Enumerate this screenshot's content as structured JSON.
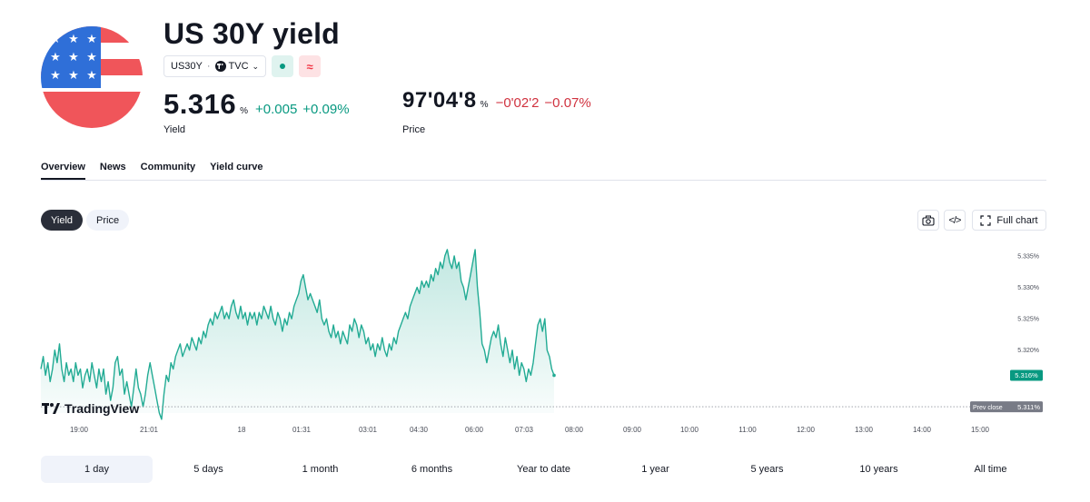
{
  "header": {
    "title": "US 30Y yield",
    "symbol": "US30Y",
    "exchange": "TVC",
    "flag_icon": "us-flag-icon"
  },
  "yield_quote": {
    "value": "5.316",
    "unit": "%",
    "change": "+0.005",
    "change_pct": "+0.09%",
    "label": "Yield"
  },
  "price_quote": {
    "value": "97'04'8",
    "unit": "%",
    "change": "−0'02'2",
    "change_pct": "−0.07%",
    "label": "Price"
  },
  "tabs": [
    {
      "label": "Overview",
      "active": true
    },
    {
      "label": "News",
      "active": false
    },
    {
      "label": "Community",
      "active": false
    },
    {
      "label": "Yield curve",
      "active": false
    }
  ],
  "chart_toggle": {
    "yield": "Yield",
    "price": "Price",
    "selected": "Yield"
  },
  "tools": {
    "full_chart": "Full chart"
  },
  "colors": {
    "up": "#089981",
    "down": "#d0323f",
    "line": "#22ab94",
    "dark": "#2a2e39"
  },
  "chart_data": {
    "type": "area",
    "x_ticks": [
      "19:00",
      "21:01",
      "18",
      "01:31",
      "03:01",
      "04:30",
      "06:00",
      "07:03",
      "08:00",
      "09:00",
      "10:00",
      "11:00",
      "12:00",
      "13:00",
      "14:00",
      "15:00"
    ],
    "y_ticks": [
      "5.335%",
      "5.330%",
      "5.325%",
      "5.320%"
    ],
    "ylim": [
      5.31,
      5.337
    ],
    "last_value_label": "5.316%",
    "prev_close_label": "Prev close",
    "prev_close_value": "5.311%",
    "prev_close": 5.311,
    "brand": "TradingView",
    "series": [
      {
        "values": [
          5.317,
          5.319,
          5.316,
          5.318,
          5.315,
          5.317,
          5.32,
          5.318,
          5.321,
          5.317,
          5.315,
          5.318,
          5.316,
          5.317,
          5.315,
          5.318,
          5.316,
          5.317,
          5.314,
          5.316,
          5.317,
          5.315,
          5.318,
          5.316,
          5.314,
          5.317,
          5.315,
          5.317,
          5.313,
          5.315,
          5.312,
          5.314,
          5.318,
          5.319,
          5.316,
          5.317,
          5.313,
          5.315,
          5.313,
          5.311,
          5.314,
          5.317,
          5.314,
          5.313,
          5.311,
          5.313,
          5.316,
          5.318,
          5.316,
          5.314,
          5.312,
          5.31,
          5.309,
          5.313,
          5.316,
          5.315,
          5.318,
          5.317,
          5.319,
          5.32,
          5.321,
          5.319,
          5.32,
          5.321,
          5.32,
          5.322,
          5.321,
          5.32,
          5.322,
          5.321,
          5.323,
          5.322,
          5.324,
          5.325,
          5.324,
          5.326,
          5.325,
          5.326,
          5.327,
          5.325,
          5.326,
          5.325,
          5.327,
          5.328,
          5.326,
          5.325,
          5.327,
          5.325,
          5.326,
          5.324,
          5.326,
          5.325,
          5.326,
          5.324,
          5.326,
          5.325,
          5.327,
          5.326,
          5.325,
          5.327,
          5.325,
          5.324,
          5.326,
          5.325,
          5.323,
          5.325,
          5.324,
          5.326,
          5.325,
          5.327,
          5.328,
          5.329,
          5.331,
          5.332,
          5.33,
          5.328,
          5.329,
          5.328,
          5.327,
          5.326,
          5.328,
          5.325,
          5.324,
          5.325,
          5.323,
          5.322,
          5.324,
          5.322,
          5.323,
          5.321,
          5.323,
          5.322,
          5.321,
          5.324,
          5.323,
          5.325,
          5.324,
          5.322,
          5.324,
          5.323,
          5.321,
          5.322,
          5.32,
          5.321,
          5.319,
          5.321,
          5.32,
          5.322,
          5.32,
          5.319,
          5.321,
          5.32,
          5.322,
          5.321,
          5.323,
          5.324,
          5.325,
          5.326,
          5.325,
          5.327,
          5.328,
          5.329,
          5.33,
          5.329,
          5.331,
          5.33,
          5.331,
          5.33,
          5.332,
          5.331,
          5.333,
          5.332,
          5.334,
          5.333,
          5.335,
          5.336,
          5.334,
          5.333,
          5.335,
          5.333,
          5.334,
          5.331,
          5.33,
          5.328,
          5.33,
          5.332,
          5.334,
          5.336,
          5.33,
          5.326,
          5.321,
          5.32,
          5.318,
          5.32,
          5.322,
          5.323,
          5.322,
          5.324,
          5.321,
          5.319,
          5.322,
          5.32,
          5.318,
          5.32,
          5.317,
          5.319,
          5.316,
          5.318,
          5.317,
          5.315,
          5.317,
          5.316,
          5.318,
          5.321,
          5.324,
          5.325,
          5.323,
          5.325,
          5.32,
          5.319,
          5.317,
          5.316
        ]
      }
    ]
  },
  "ranges": [
    {
      "label": "1 day",
      "active": true
    },
    {
      "label": "5 days",
      "active": false
    },
    {
      "label": "1 month",
      "active": false
    },
    {
      "label": "6 months",
      "active": false
    },
    {
      "label": "Year to date",
      "active": false
    },
    {
      "label": "1 year",
      "active": false
    },
    {
      "label": "5 years",
      "active": false
    },
    {
      "label": "10 years",
      "active": false
    },
    {
      "label": "All time",
      "active": false
    }
  ]
}
